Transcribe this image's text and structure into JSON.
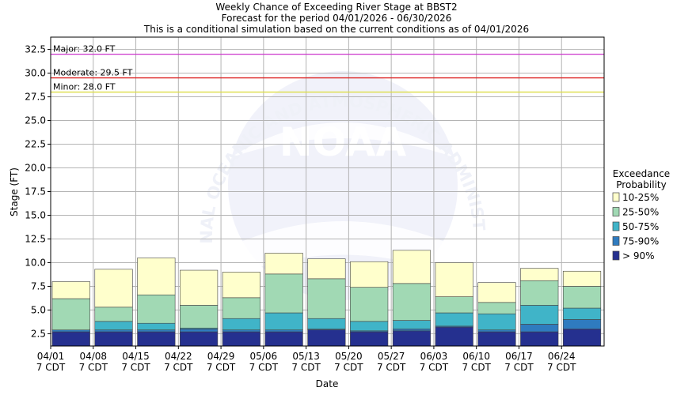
{
  "header": {
    "title": "Weekly Chance of Exceeding River Stage at BBST2",
    "subtitle1": "Forecast for the period 04/01/2026 - 06/30/2026",
    "subtitle2": "This is a conditional simulation based on the current conditions as of 04/01/2026"
  },
  "watermark": {
    "text": "NATIONAL OCEANIC AND ATMOSPHERIC ADMINISTRATION",
    "logo": "NOAA"
  },
  "chart_data": {
    "type": "bar",
    "stacked": true,
    "xlabel": "Date",
    "ylabel": "Stage (FT)",
    "ylim": [
      1.2,
      33.8
    ],
    "yticks": [
      2.5,
      5.0,
      7.5,
      10.0,
      12.5,
      15.0,
      17.5,
      20.0,
      22.5,
      25.0,
      27.5,
      30.0,
      32.5
    ],
    "ytick_labels": [
      "2.5",
      "5.0",
      "7.5",
      "10.0",
      "12.5",
      "15.0",
      "17.5",
      "20.0",
      "22.5",
      "25.0",
      "27.5",
      "30.0",
      "32.5"
    ],
    "grid": true,
    "x_ticks": [
      {
        "date": "04/01",
        "sub": "7 CDT"
      },
      {
        "date": "04/08",
        "sub": "7 CDT"
      },
      {
        "date": "04/15",
        "sub": "7 CDT"
      },
      {
        "date": "04/22",
        "sub": "7 CDT"
      },
      {
        "date": "04/29",
        "sub": "7 CDT"
      },
      {
        "date": "05/06",
        "sub": "7 CDT"
      },
      {
        "date": "05/13",
        "sub": "7 CDT"
      },
      {
        "date": "05/20",
        "sub": "7 CDT"
      },
      {
        "date": "05/27",
        "sub": "7 CDT"
      },
      {
        "date": "06/03",
        "sub": "7 CDT"
      },
      {
        "date": "06/10",
        "sub": "7 CDT"
      },
      {
        "date": "06/17",
        "sub": "7 CDT"
      },
      {
        "date": "06/24",
        "sub": "7 CDT"
      }
    ],
    "categories": [
      "04/01",
      "04/08",
      "04/15",
      "04/22",
      "04/29",
      "05/06",
      "05/13",
      "05/20",
      "05/27",
      "06/03",
      "06/10",
      "06/17",
      "06/24"
    ],
    "series": [
      {
        "name": "> 90%",
        "color": "#25308f",
        "values": [
          2.7,
          2.7,
          2.7,
          2.7,
          2.7,
          2.7,
          2.9,
          2.7,
          2.8,
          3.2,
          2.7,
          2.7,
          3.0
        ]
      },
      {
        "name": "75-90%",
        "color": "#2f7bbf",
        "values": [
          3.0,
          2.9,
          2.9,
          3.0,
          2.9,
          2.9,
          3.0,
          2.8,
          3.0,
          3.3,
          2.9,
          3.5,
          4.0
        ]
      },
      {
        "name": "50-75%",
        "color": "#40b4c8",
        "values": [
          2.9,
          3.8,
          3.6,
          3.1,
          4.1,
          4.7,
          4.1,
          3.8,
          3.9,
          4.7,
          4.6,
          5.5,
          5.2
        ]
      },
      {
        "name": "25-50%",
        "color": "#a1d9b4",
        "values": [
          6.2,
          5.3,
          6.6,
          5.5,
          6.3,
          8.8,
          8.3,
          7.4,
          7.8,
          6.4,
          5.8,
          8.1,
          7.5
        ]
      },
      {
        "name": "10-25%",
        "color": "#ffffcc",
        "values": [
          8.0,
          9.3,
          10.5,
          9.2,
          9.0,
          11.0,
          10.4,
          10.1,
          11.3,
          10.0,
          7.9,
          9.4,
          9.1
        ]
      }
    ],
    "thresholds": [
      {
        "label": "Major: 32.0 FT",
        "value": 32.0,
        "color": "#cc33cc"
      },
      {
        "label": "Moderate: 29.5 FT",
        "value": 29.5,
        "color": "#dd2222"
      },
      {
        "label": "Minor: 28.0 FT",
        "value": 28.0,
        "color": "#dddd44"
      }
    ],
    "legend": {
      "title_line1": "Exceedance",
      "title_line2": "Probability",
      "placement": "right",
      "items": [
        {
          "label": "10-25%",
          "color": "#ffffcc"
        },
        {
          "label": "25-50%",
          "color": "#a1d9b4"
        },
        {
          "label": "50-75%",
          "color": "#40b4c8"
        },
        {
          "label": "75-90%",
          "color": "#2f7bbf"
        },
        {
          "label": "> 90%",
          "color": "#25308f"
        }
      ]
    }
  }
}
